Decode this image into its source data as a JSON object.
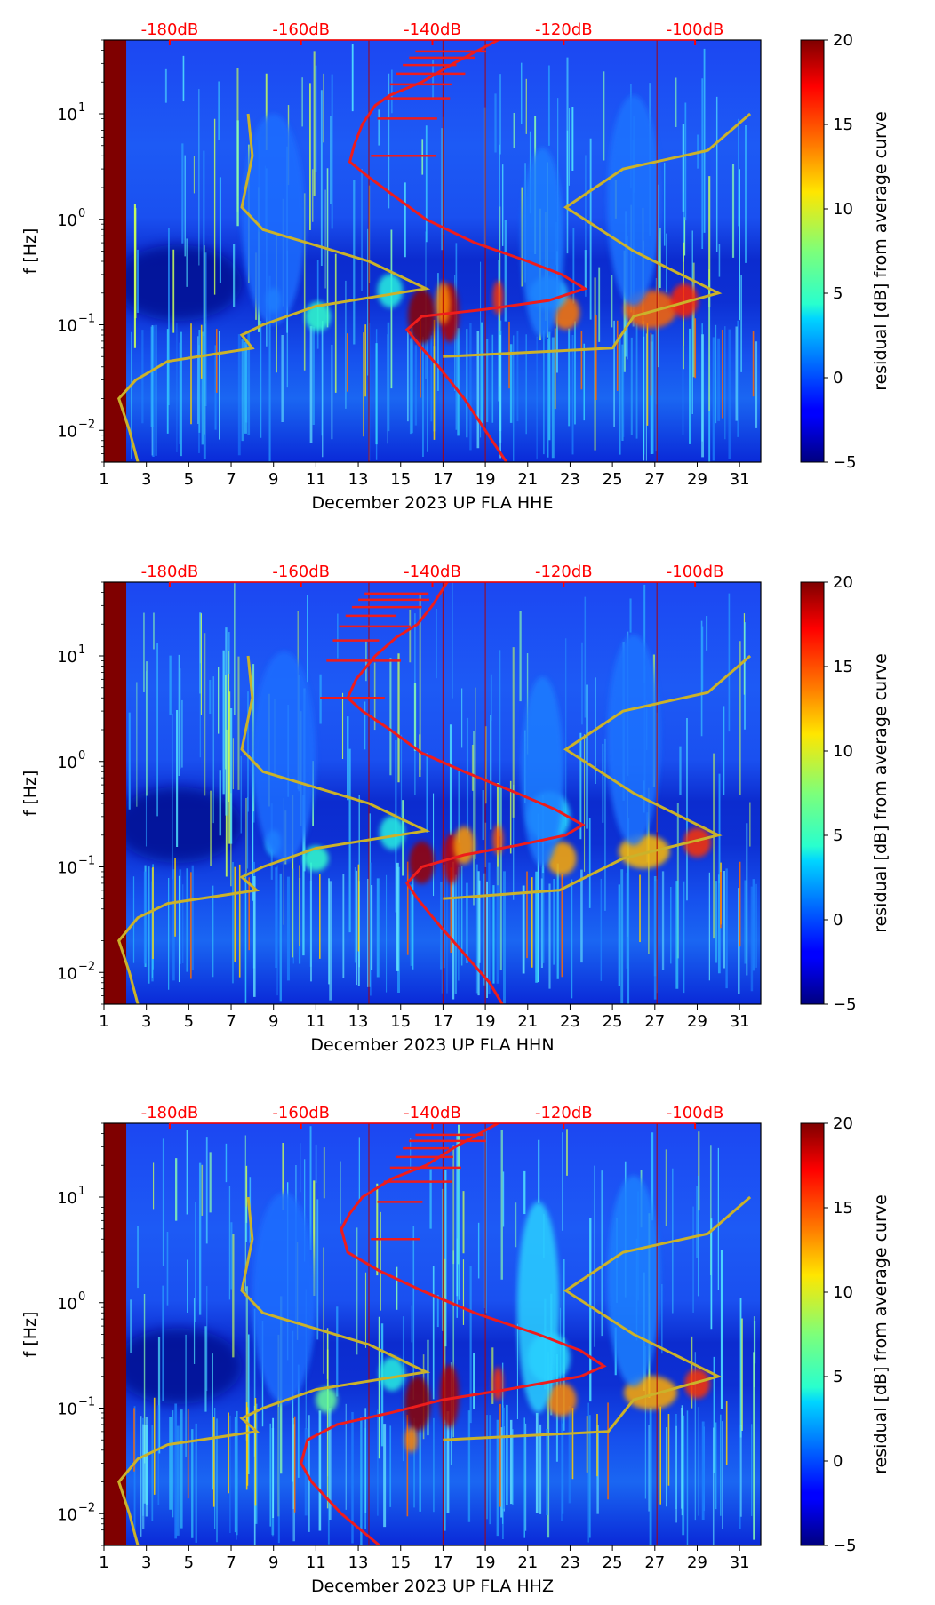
{
  "colors": {
    "red_curve": "#ee1c1c",
    "yellow_curve": "#cbb22a",
    "db_label": "#ff0000"
  },
  "chart_data": [
    {
      "type": "heatmap",
      "component": "HHE",
      "xlabel": "December 2023 UP FLA  HHE",
      "ylabel": "f [Hz]",
      "x_ticks": [
        "1",
        "3",
        "5",
        "7",
        "9",
        "11",
        "13",
        "15",
        "17",
        "19",
        "21",
        "23",
        "25",
        "27",
        "29",
        "31"
      ],
      "xlim": [
        1,
        32
      ],
      "ylim_hz": [
        0.005,
        50
      ],
      "y_ticks": [
        {
          "value": 0.01,
          "base": "10",
          "exp": "−2"
        },
        {
          "value": 0.1,
          "base": "10",
          "exp": "−1"
        },
        {
          "value": 1,
          "base": "10",
          "exp": "0"
        },
        {
          "value": 10,
          "base": "10",
          "exp": "1"
        }
      ],
      "db_scale": [
        {
          "label": "-180dB",
          "day": 4.1
        },
        {
          "label": "-160dB",
          "day": 10.3
        },
        {
          "label": "-140dB",
          "day": 16.5
        },
        {
          "label": "-120dB",
          "day": 22.7
        },
        {
          "label": "-100dB",
          "day": 28.9
        }
      ],
      "colorbar": {
        "label": "residual [dB] from average curve",
        "min": -5,
        "max": 20,
        "ticks": [
          "−5",
          "0",
          "5",
          "10",
          "15",
          "20"
        ]
      },
      "red_curve_freq_vs_day": [
        [
          50,
          19.6
        ],
        [
          30,
          17.5
        ],
        [
          20,
          16
        ],
        [
          15,
          14.5
        ],
        [
          12,
          13.8
        ],
        [
          8,
          13.2
        ],
        [
          5,
          12.8
        ],
        [
          3.5,
          12.6
        ],
        [
          2.5,
          13.5
        ],
        [
          1.5,
          15.0
        ],
        [
          1,
          16.2
        ],
        [
          0.6,
          18.5
        ],
        [
          0.4,
          21.0
        ],
        [
          0.3,
          22.6
        ],
        [
          0.22,
          23.7
        ],
        [
          0.17,
          22.0
        ],
        [
          0.14,
          19.0
        ],
        [
          0.12,
          16.0
        ],
        [
          0.09,
          15.3
        ],
        [
          0.06,
          16.0
        ],
        [
          0.04,
          16.8
        ],
        [
          0.02,
          18.0
        ],
        [
          0.01,
          19.0
        ],
        [
          0.005,
          20.0
        ]
      ],
      "yellow_curve_freq_vs_day": [
        [
          0.005,
          2.6
        ],
        [
          0.01,
          2.2
        ],
        [
          0.02,
          1.7
        ],
        [
          0.03,
          2.5
        ],
        [
          0.045,
          4.0
        ],
        [
          0.06,
          8.0
        ],
        [
          0.08,
          7.5
        ],
        [
          0.1,
          8.5
        ],
        [
          0.15,
          11.0
        ],
        [
          0.22,
          16.2
        ],
        [
          0.4,
          13.5
        ],
        [
          0.8,
          8.5
        ],
        [
          1.3,
          7.5
        ],
        [
          4,
          8.0
        ],
        [
          10,
          7.8
        ]
      ],
      "yellow_right_freq_vs_day": [
        [
          0.05,
          17.0
        ],
        [
          0.06,
          25.0
        ],
        [
          0.12,
          26.0
        ],
        [
          0.2,
          30.0
        ],
        [
          0.5,
          26.0
        ],
        [
          1.3,
          22.8
        ],
        [
          3,
          25.5
        ],
        [
          4.5,
          29.5
        ],
        [
          10,
          31.5
        ]
      ],
      "blobs": [
        [
          16.0,
          0.12,
          1.3,
          0.13,
          "#8a0000"
        ],
        [
          17.3,
          0.13,
          0.9,
          0.14,
          "#b00000"
        ],
        [
          17.0,
          0.16,
          0.7,
          0.1,
          "#ff8c00"
        ],
        [
          19.6,
          0.18,
          0.5,
          0.08,
          "#ff3300"
        ],
        [
          22.8,
          0.13,
          1.3,
          0.08,
          "#ff7700"
        ],
        [
          26.8,
          0.14,
          2.5,
          0.09,
          "#ff6600"
        ],
        [
          28.4,
          0.17,
          1.3,
          0.08,
          "#ff2200"
        ],
        [
          11.1,
          0.12,
          1.2,
          0.07,
          "#33ffcc"
        ],
        [
          9.0,
          0.17,
          0.7,
          0.06,
          "#2ae5ff"
        ],
        [
          14.5,
          0.21,
          1.2,
          0.08,
          "#26f0e0"
        ],
        [
          22.0,
          0.2,
          1.8,
          0.08,
          "#2ab8ff"
        ],
        [
          21.7,
          0.6,
          2.0,
          0.45,
          "#1e7dff"
        ],
        [
          26.0,
          1.5,
          2.5,
          0.5,
          "#1a73ff"
        ],
        [
          9.0,
          1.0,
          3.0,
          0.5,
          "#1a6dff"
        ]
      ],
      "dark_blob": [
        4.5,
        0.25,
        3.0,
        0.18
      ],
      "vertical_red_lines": [
        13.5,
        17.0,
        19.0,
        27.1
      ]
    },
    {
      "type": "heatmap",
      "component": "HHN",
      "xlabel": "December 2023 UP FLA  HHN",
      "ylabel": "f [Hz]",
      "x_ticks": [
        "1",
        "3",
        "5",
        "7",
        "9",
        "11",
        "13",
        "15",
        "17",
        "19",
        "21",
        "23",
        "25",
        "27",
        "29",
        "31"
      ],
      "xlim": [
        1,
        32
      ],
      "ylim_hz": [
        0.005,
        50
      ],
      "y_ticks": [
        {
          "value": 0.01,
          "base": "10",
          "exp": "−2"
        },
        {
          "value": 0.1,
          "base": "10",
          "exp": "−1"
        },
        {
          "value": 1,
          "base": "10",
          "exp": "0"
        },
        {
          "value": 10,
          "base": "10",
          "exp": "1"
        }
      ],
      "db_scale": [
        {
          "label": "-180dB",
          "day": 4.1
        },
        {
          "label": "-160dB",
          "day": 10.3
        },
        {
          "label": "-140dB",
          "day": 16.5
        },
        {
          "label": "-120dB",
          "day": 22.7
        },
        {
          "label": "-100dB",
          "day": 28.9
        }
      ],
      "colorbar": {
        "label": "residual [dB] from average curve",
        "min": -5,
        "max": 20,
        "ticks": [
          "−5",
          "0",
          "5",
          "10",
          "15",
          "20"
        ]
      },
      "red_curve_freq_vs_day": [
        [
          50,
          17.2
        ],
        [
          30,
          16.5
        ],
        [
          20,
          15.8
        ],
        [
          15,
          14.8
        ],
        [
          10,
          13.8
        ],
        [
          6,
          12.9
        ],
        [
          4,
          12.5
        ],
        [
          3,
          13.2
        ],
        [
          2,
          14.5
        ],
        [
          1.2,
          16.0
        ],
        [
          0.8,
          18.0
        ],
        [
          0.5,
          20.5
        ],
        [
          0.35,
          22.3
        ],
        [
          0.25,
          23.6
        ],
        [
          0.2,
          22.8
        ],
        [
          0.16,
          20.5
        ],
        [
          0.13,
          18.0
        ],
        [
          0.1,
          16.0
        ],
        [
          0.07,
          15.3
        ],
        [
          0.05,
          15.8
        ],
        [
          0.03,
          16.7
        ],
        [
          0.015,
          18.0
        ],
        [
          0.008,
          19.2
        ],
        [
          0.005,
          19.8
        ]
      ],
      "yellow_curve_freq_vs_day": [
        [
          0.005,
          2.6
        ],
        [
          0.01,
          2.2
        ],
        [
          0.02,
          1.7
        ],
        [
          0.033,
          2.6
        ],
        [
          0.045,
          4.0
        ],
        [
          0.06,
          8.2
        ],
        [
          0.08,
          7.5
        ],
        [
          0.1,
          8.5
        ],
        [
          0.15,
          11.0
        ],
        [
          0.22,
          16.2
        ],
        [
          0.4,
          13.5
        ],
        [
          0.8,
          8.5
        ],
        [
          1.3,
          7.5
        ],
        [
          4,
          8.0
        ],
        [
          10,
          7.8
        ]
      ],
      "yellow_right_freq_vs_day": [
        [
          0.05,
          17.0
        ],
        [
          0.06,
          22.5
        ],
        [
          0.12,
          25.5
        ],
        [
          0.2,
          30.0
        ],
        [
          0.5,
          26.0
        ],
        [
          1.3,
          22.8
        ],
        [
          3,
          25.5
        ],
        [
          4.5,
          29.5
        ],
        [
          10,
          31.5
        ]
      ],
      "blobs": [
        [
          16.0,
          0.11,
          1.2,
          0.1,
          "#9a0000"
        ],
        [
          17.4,
          0.12,
          0.8,
          0.12,
          "#c00000"
        ],
        [
          18.0,
          0.16,
          1.0,
          0.09,
          "#ff9900"
        ],
        [
          19.6,
          0.18,
          0.5,
          0.07,
          "#ff5500"
        ],
        [
          22.6,
          0.12,
          1.4,
          0.08,
          "#ffaa00"
        ],
        [
          26.5,
          0.14,
          2.4,
          0.08,
          "#ffbb00"
        ],
        [
          29.0,
          0.17,
          1.3,
          0.07,
          "#ff3300"
        ],
        [
          11.0,
          0.12,
          1.2,
          0.06,
          "#33ffcc"
        ],
        [
          9.0,
          0.17,
          0.7,
          0.06,
          "#2ae5ff"
        ],
        [
          14.6,
          0.21,
          1.2,
          0.08,
          "#26f0e0"
        ],
        [
          22.0,
          0.3,
          2.0,
          0.12,
          "#26d8ff"
        ],
        [
          21.7,
          0.8,
          2.0,
          0.45,
          "#1e7dff"
        ],
        [
          26.0,
          1.6,
          2.5,
          0.5,
          "#1a73ff"
        ],
        [
          9.5,
          1.1,
          3.0,
          0.5,
          "#1a6dff"
        ]
      ],
      "dark_blob": [
        4.5,
        0.25,
        3.0,
        0.18
      ],
      "vertical_red_lines": [
        13.5,
        17.0,
        19.0,
        27.1
      ]
    },
    {
      "type": "heatmap",
      "component": "HHZ",
      "xlabel": "December 2023 UP FLA  HHZ",
      "ylabel": "f [Hz]",
      "x_ticks": [
        "1",
        "3",
        "5",
        "7",
        "9",
        "11",
        "13",
        "15",
        "17",
        "19",
        "21",
        "23",
        "25",
        "27",
        "29",
        "31"
      ],
      "xlim": [
        1,
        32
      ],
      "ylim_hz": [
        0.005,
        50
      ],
      "y_ticks": [
        {
          "value": 0.01,
          "base": "10",
          "exp": "−2"
        },
        {
          "value": 0.1,
          "base": "10",
          "exp": "−1"
        },
        {
          "value": 1,
          "base": "10",
          "exp": "0"
        },
        {
          "value": 10,
          "base": "10",
          "exp": "1"
        }
      ],
      "db_scale": [
        {
          "label": "-180dB",
          "day": 4.1
        },
        {
          "label": "-160dB",
          "day": 10.3
        },
        {
          "label": "-140dB",
          "day": 16.5
        },
        {
          "label": "-120dB",
          "day": 22.7
        },
        {
          "label": "-100dB",
          "day": 28.9
        }
      ],
      "colorbar": {
        "label": "residual [dB] from average curve",
        "min": -5,
        "max": 20,
        "ticks": [
          "−5",
          "0",
          "5",
          "10",
          "15",
          "20"
        ]
      },
      "red_curve_freq_vs_day": [
        [
          50,
          19.6
        ],
        [
          30,
          17.6
        ],
        [
          20,
          16.2
        ],
        [
          15,
          14.6
        ],
        [
          10,
          13.2
        ],
        [
          7,
          12.6
        ],
        [
          5,
          12.2
        ],
        [
          3,
          12.5
        ],
        [
          2,
          14.0
        ],
        [
          1.3,
          16.0
        ],
        [
          0.8,
          18.5
        ],
        [
          0.5,
          21.5
        ],
        [
          0.35,
          23.5
        ],
        [
          0.25,
          24.6
        ],
        [
          0.2,
          23.5
        ],
        [
          0.15,
          20.0
        ],
        [
          0.12,
          17.0
        ],
        [
          0.09,
          14.5
        ],
        [
          0.07,
          12.0
        ],
        [
          0.05,
          10.6
        ],
        [
          0.03,
          10.3
        ],
        [
          0.02,
          10.8
        ],
        [
          0.01,
          12.2
        ],
        [
          0.005,
          14.0
        ]
      ],
      "yellow_curve_freq_vs_day": [
        [
          0.005,
          2.6
        ],
        [
          0.01,
          2.2
        ],
        [
          0.02,
          1.7
        ],
        [
          0.033,
          2.6
        ],
        [
          0.045,
          4.0
        ],
        [
          0.06,
          8.2
        ],
        [
          0.08,
          7.5
        ],
        [
          0.1,
          8.5
        ],
        [
          0.15,
          11.0
        ],
        [
          0.22,
          16.2
        ],
        [
          0.4,
          13.5
        ],
        [
          0.8,
          8.5
        ],
        [
          1.3,
          7.5
        ],
        [
          4,
          8.0
        ],
        [
          10,
          7.8
        ]
      ],
      "yellow_right_freq_vs_day": [
        [
          0.05,
          17.0
        ],
        [
          0.06,
          24.8
        ],
        [
          0.12,
          26.0
        ],
        [
          0.2,
          30.0
        ],
        [
          0.5,
          26.0
        ],
        [
          1.3,
          22.8
        ],
        [
          3,
          25.5
        ],
        [
          4.5,
          29.5
        ],
        [
          10,
          31.5
        ]
      ],
      "blobs": [
        [
          15.8,
          0.11,
          1.2,
          0.13,
          "#8a0000"
        ],
        [
          17.3,
          0.13,
          0.9,
          0.15,
          "#a80000"
        ],
        [
          19.6,
          0.17,
          0.5,
          0.08,
          "#ff3300"
        ],
        [
          22.6,
          0.12,
          1.4,
          0.08,
          "#ff8800"
        ],
        [
          26.8,
          0.14,
          2.5,
          0.08,
          "#ffaa00"
        ],
        [
          29.0,
          0.17,
          1.2,
          0.07,
          "#ff3300"
        ],
        [
          11.5,
          0.12,
          1.0,
          0.06,
          "#66ff99"
        ],
        [
          15.5,
          0.05,
          0.6,
          0.06,
          "#ff8800"
        ],
        [
          14.6,
          0.21,
          1.2,
          0.08,
          "#26f0e0"
        ],
        [
          22.0,
          0.3,
          2.0,
          0.12,
          "#26d8ff"
        ],
        [
          21.5,
          0.9,
          2.0,
          0.5,
          "#2ad0ff"
        ],
        [
          26.0,
          1.6,
          2.5,
          0.5,
          "#1a80ff"
        ],
        [
          9.5,
          1.1,
          3.0,
          0.5,
          "#1a6dff"
        ]
      ],
      "dark_blob": [
        4.5,
        0.25,
        3.0,
        0.18
      ],
      "vertical_red_lines": [
        13.5,
        17.0,
        19.0,
        27.1
      ]
    }
  ]
}
